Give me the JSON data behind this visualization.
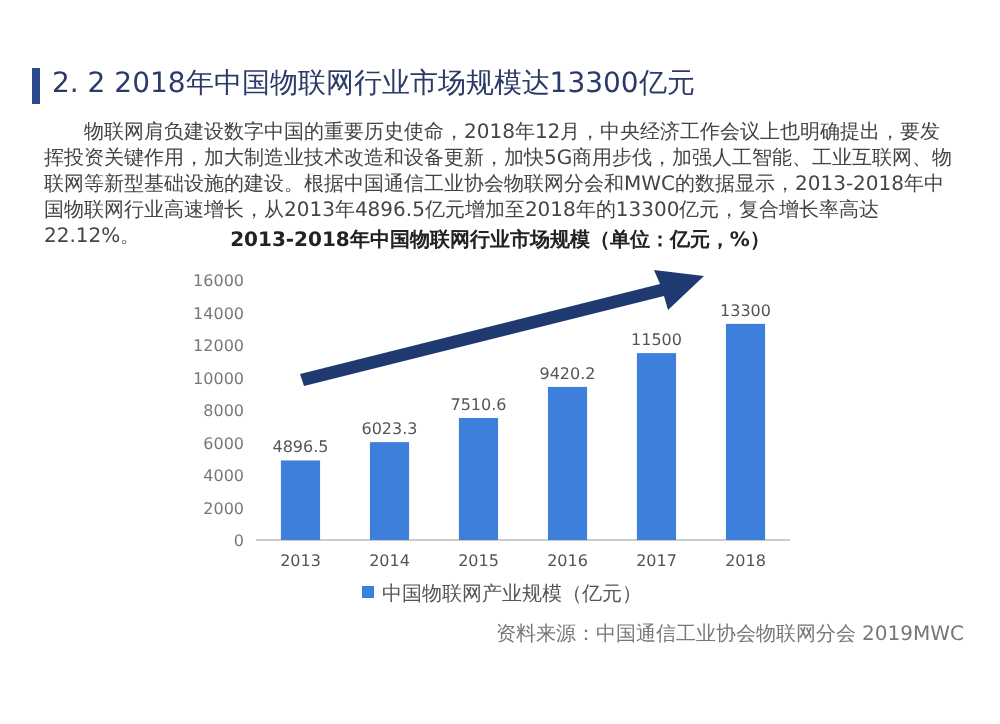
{
  "chart_data": {
    "type": "bar",
    "title": "2. 2  2018年中国物联网行业市场规模达13300亿元",
    "subtitle": "物联网肩负建设数字中国的重要历史使命，2018年12月，中央经济工作会议上也明确提出，要发挥投资关键作用，加大制造业技术改造和设备更新，加快5G商用步伐，加强人工智能、工业互联网、物联网等新型基础设施的建设。根据中国通信工业协会物联网分会和MWC的数据显示，2013-2018年中国物联网行业高速增长，从2013年4896.5亿元增加至2018年的13300亿元，复合增长率高达22.12%。",
    "annotations": [
      "2013-2018年中国物联网行业市场规模（单位：亿元，%）",
      "资料来源：中国通信工业协会物联网分会 2019MWC"
    ],
    "categories": [
      "2013",
      "2014",
      "2015",
      "2016",
      "2017",
      "2018"
    ],
    "series": [
      {
        "name": "中国物联网产业规模（亿元）",
        "color": "#3f7fdc",
        "values": [
          4896.5,
          6023.3,
          7510.6,
          9420.2,
          11500,
          13300
        ]
      }
    ],
    "value_labels": [
      "4896.5",
      "6023.3",
      "7510.6",
      "9420.2",
      "11500",
      "13300"
    ],
    "ylim": [
      0,
      16000
    ],
    "yticks": [
      0,
      2000,
      4000,
      6000,
      8000,
      10000,
      12000,
      14000,
      16000
    ],
    "grid": false,
    "legend": "bottom"
  }
}
